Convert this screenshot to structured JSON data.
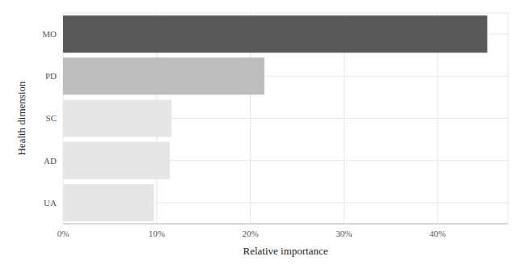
{
  "chart_data": {
    "type": "bar",
    "orientation": "horizontal",
    "categories": [
      "MO",
      "PD",
      "SC",
      "AD",
      "UA"
    ],
    "values": [
      45.3,
      21.5,
      11.6,
      11.4,
      9.7
    ],
    "colors": [
      "#595959",
      "#bdbdbd",
      "#e6e6e6",
      "#e6e6e6",
      "#e6e6e6"
    ],
    "x_label": "Relative importance",
    "y_label": "Health dimension",
    "xlim": [
      0,
      47.5
    ],
    "xticks": [
      {
        "value": 0,
        "label": "0%"
      },
      {
        "value": 10,
        "label": "10%"
      },
      {
        "value": 20,
        "label": "20%"
      },
      {
        "value": 30,
        "label": "30%"
      },
      {
        "value": 40,
        "label": "40%"
      }
    ],
    "grid": true
  }
}
